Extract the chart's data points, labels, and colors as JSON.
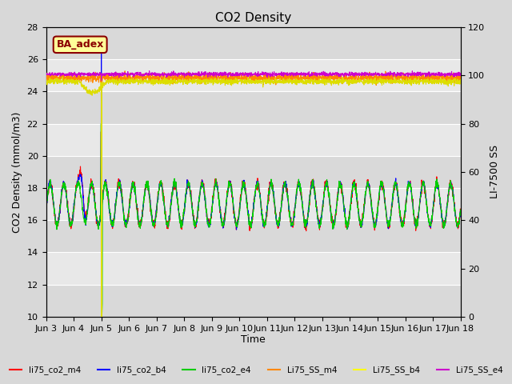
{
  "title": "CO2 Density",
  "ylabel_left": "CO2 Density (mmol/m3)",
  "ylabel_right": "LI-7500 SS",
  "xlabel": "Time",
  "ylim_left": [
    10,
    28
  ],
  "ylim_right": [
    0,
    120
  ],
  "yticks_left": [
    10,
    12,
    14,
    16,
    18,
    20,
    22,
    24,
    26,
    28
  ],
  "yticks_right": [
    0,
    20,
    40,
    60,
    80,
    100,
    120
  ],
  "xtick_labels": [
    "Jun 3",
    "Jun 4",
    "Jun 5",
    "Jun 6",
    "Jun 7",
    "Jun 8",
    "Jun 9",
    "Jun 10",
    "Jun 11",
    "Jun 12",
    "Jun 13",
    "Jun 14",
    "Jun 15",
    "Jun 16",
    "Jun 17",
    "Jun 18"
  ],
  "fig_bg": "#d8d8d8",
  "plot_bg": "#e8e8e8",
  "stripe_color": "#d0d0d0",
  "annotation_text": "BA_adex",
  "annotation_color": "#8b0000",
  "annotation_bg": "#ffff99",
  "legend_entries": [
    {
      "label": "li75_co2_m4",
      "color": "#ff0000"
    },
    {
      "label": "li75_co2_b4",
      "color": "#0000ff"
    },
    {
      "label": "li75_co2_e4",
      "color": "#00cc00"
    },
    {
      "label": "Li75_SS_m4",
      "color": "#ff8800"
    },
    {
      "label": "Li75_SS_b4",
      "color": "#ffff00"
    },
    {
      "label": "Li75_SS_e4",
      "color": "#cc00cc"
    }
  ],
  "ss_m4_val": 99.0,
  "ss_b4_val": 97.5,
  "ss_e4_val": 100.5,
  "co2_base": 17.0,
  "co2_amp": 1.3,
  "peaks_per_day": 2,
  "n_days": 15,
  "spike_day": 2,
  "linewidth": 0.8
}
